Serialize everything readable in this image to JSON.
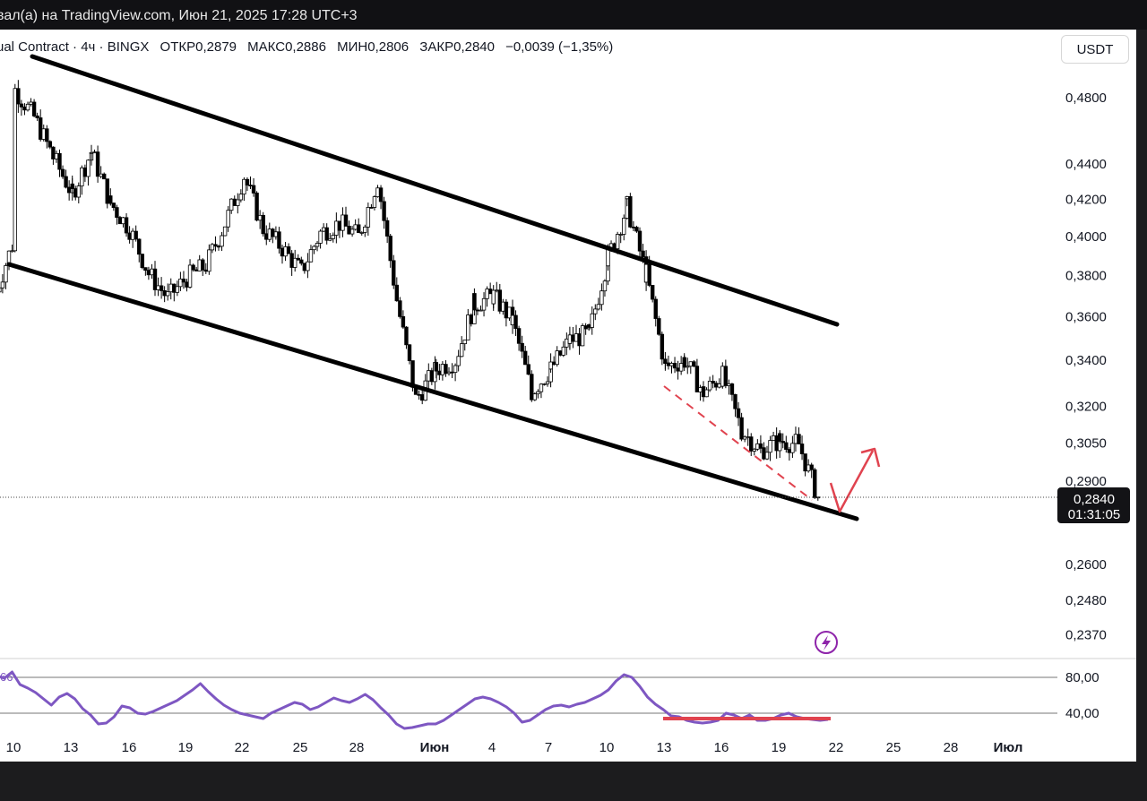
{
  "window": {
    "title": "вал(а) на TradingView.com, Июн 21, 2025 17:28 UTC+3"
  },
  "legend": {
    "symbol": "ual Contract · 4ч · BINGX",
    "open": "ОТКР0,2879",
    "high": "МАКС0,2886",
    "low": "МИН0,2806",
    "close": "ЗАКР0,2840",
    "change": "−0,0039 (−1,35%)"
  },
  "currency_label": "USDT",
  "price_badge": {
    "price": "0,2840",
    "countdown": "01:31:05"
  },
  "rsi_partial_value": "66",
  "colors": {
    "candle": "#000000",
    "channel": "#000000",
    "annotation_red": "#e0434f",
    "rsi": "#7e57c2",
    "axis_text": "#131722"
  },
  "icons": {
    "lightning": "lightning-icon"
  },
  "chart_data": [
    {
      "type": "candlestick",
      "symbol": "ual Contract · 4ч · BINGX",
      "y_scale": "log",
      "y_ticks": [
        "0,4800",
        "0,4400",
        "0,4200",
        "0,4000",
        "0,3800",
        "0,3600",
        "0,3400",
        "0,3200",
        "0,3050",
        "0,2900",
        "0,2600",
        "0,2480",
        "0,2370"
      ],
      "x_ticks": [
        "10",
        "13",
        "16",
        "19",
        "22",
        "25",
        "28",
        "Июн",
        "4",
        "7",
        "10",
        "13",
        "16",
        "19",
        "22",
        "25",
        "28",
        "Июл"
      ],
      "last_price": 0.284,
      "trend_channel": {
        "upper": [
          {
            "x": "10",
            "y": 0.505
          },
          {
            "x": "22",
            "y": 0.3595
          }
        ],
        "lower": [
          {
            "x": "9",
            "y": 0.388
          },
          {
            "x": "22",
            "y": 0.2775
          }
        ]
      },
      "series": [
        {
          "name": "",
          "close_path": [
            {
              "x": "9",
              "y": 0.372
            },
            {
              "x": "10",
              "y": 0.4
            },
            {
              "x": "10",
              "y": 0.485
            },
            {
              "x": "11",
              "y": 0.468
            },
            {
              "x": "12",
              "y": 0.444
            },
            {
              "x": "13",
              "y": 0.423
            },
            {
              "x": "14",
              "y": 0.447
            },
            {
              "x": "15",
              "y": 0.418
            },
            {
              "x": "16",
              "y": 0.404
            },
            {
              "x": "17",
              "y": 0.381
            },
            {
              "x": "18",
              "y": 0.369
            },
            {
              "x": "19",
              "y": 0.379
            },
            {
              "x": "20",
              "y": 0.385
            },
            {
              "x": "21",
              "y": 0.407
            },
            {
              "x": "22",
              "y": 0.433
            },
            {
              "x": "23",
              "y": 0.404
            },
            {
              "x": "24",
              "y": 0.394
            },
            {
              "x": "25",
              "y": 0.382
            },
            {
              "x": "26",
              "y": 0.402
            },
            {
              "x": "27",
              "y": 0.407
            },
            {
              "x": "28",
              "y": 0.4
            },
            {
              "x": "29",
              "y": 0.431
            },
            {
              "x": "30",
              "y": 0.368
            },
            {
              "x": "31",
              "y": 0.323
            },
            {
              "x": "Июн",
              "y": 0.336
            },
            {
              "x": "2",
              "y": 0.34
            },
            {
              "x": "3",
              "y": 0.366
            },
            {
              "x": "4",
              "y": 0.37
            },
            {
              "x": "5",
              "y": 0.358
            },
            {
              "x": "6",
              "y": 0.326
            },
            {
              "x": "7",
              "y": 0.336
            },
            {
              "x": "8",
              "y": 0.349
            },
            {
              "x": "9",
              "y": 0.352
            },
            {
              "x": "10",
              "y": 0.389
            },
            {
              "x": "11",
              "y": 0.416
            },
            {
              "x": "12",
              "y": 0.381
            },
            {
              "x": "13",
              "y": 0.337
            },
            {
              "x": "14",
              "y": 0.34
            },
            {
              "x": "15",
              "y": 0.326
            },
            {
              "x": "16",
              "y": 0.333
            },
            {
              "x": "17",
              "y": 0.31
            },
            {
              "x": "18",
              "y": 0.302
            },
            {
              "x": "19",
              "y": 0.306
            },
            {
              "x": "20",
              "y": 0.3045
            },
            {
              "x": "21",
              "y": 0.284
            }
          ]
        }
      ],
      "annotations": [
        {
          "kind": "dashed-line",
          "color": "#e0434f",
          "from": {
            "x": "13",
            "y": 0.329
          },
          "to": {
            "x": "21",
            "y": 0.283
          }
        },
        {
          "kind": "arrow",
          "color": "#e0434f",
          "path": [
            {
              "x": "21",
              "y": 0.29
            },
            {
              "x": "21.3",
              "y": 0.278
            },
            {
              "x": "22.4",
              "y": 0.303
            }
          ]
        }
      ]
    },
    {
      "type": "line",
      "name": "RSI",
      "y_ticks": [
        "80,00",
        "40,00"
      ],
      "levels": [
        70,
        30
      ],
      "y_range": [
        20,
        90
      ],
      "values": [
        82,
        79,
        86,
        72,
        68,
        63,
        56,
        49,
        58,
        62,
        56,
        45,
        38,
        28,
        29,
        36,
        48,
        46,
        40,
        39,
        42,
        46,
        50,
        54,
        60,
        66,
        73,
        64,
        56,
        49,
        44,
        40,
        38,
        36,
        34,
        40,
        44,
        48,
        52,
        50,
        44,
        47,
        52,
        57,
        54,
        52,
        56,
        61,
        55,
        46,
        38,
        28,
        23,
        24,
        26,
        28,
        28,
        32,
        38,
        44,
        50,
        56,
        58,
        56,
        52,
        47,
        40,
        30,
        32,
        38,
        44,
        48,
        49,
        47,
        50,
        52,
        56,
        60,
        66,
        76,
        83,
        80,
        70,
        58,
        50,
        44,
        37,
        36,
        32,
        30,
        29,
        30,
        32,
        40,
        38,
        34,
        38,
        32,
        32,
        34,
        38,
        40,
        36,
        34,
        33,
        32,
        33
      ]
    }
  ]
}
